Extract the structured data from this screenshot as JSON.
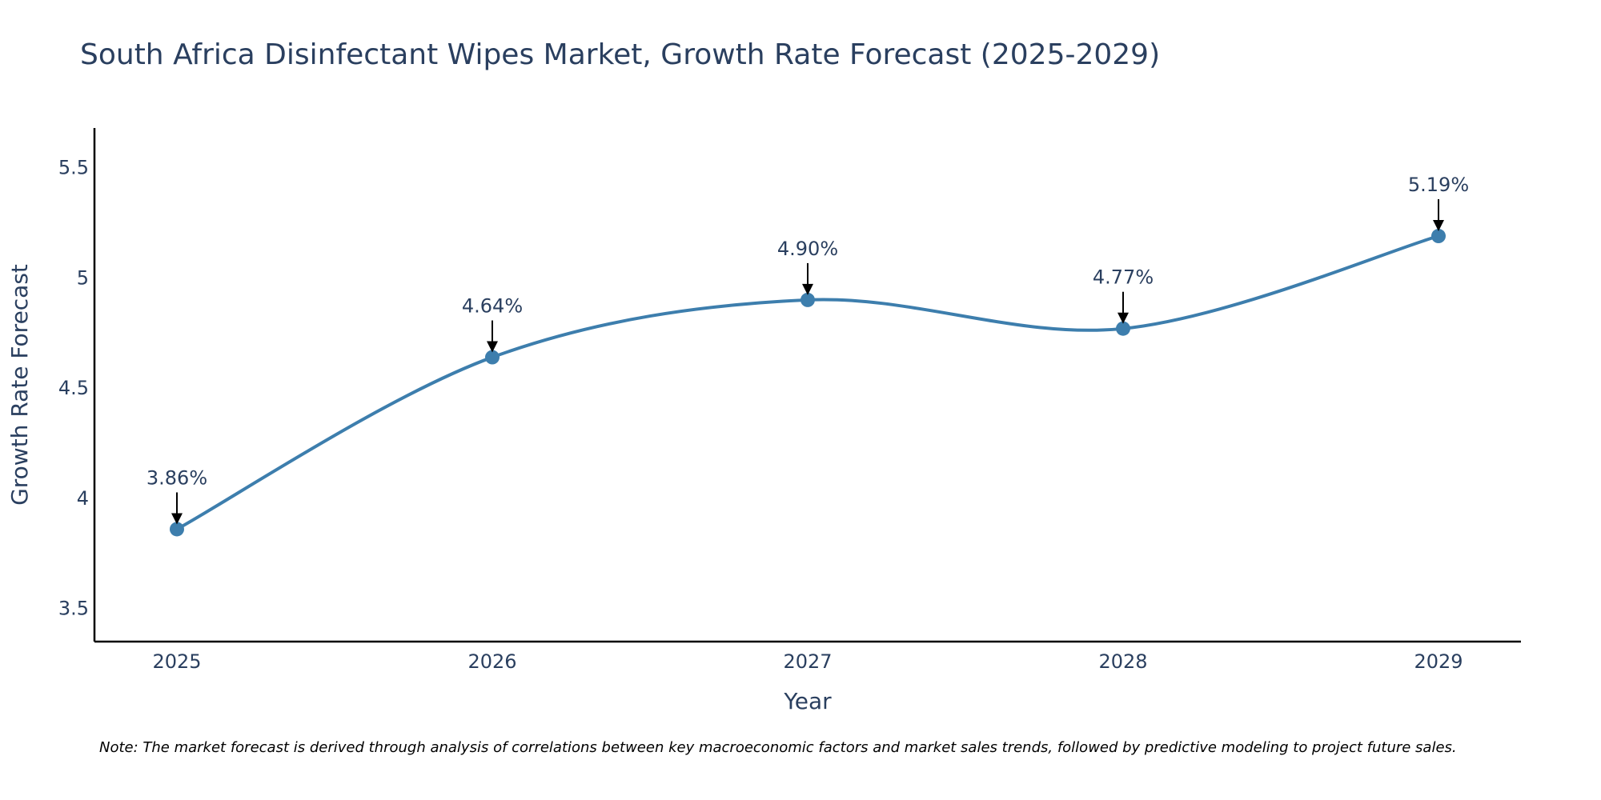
{
  "chart_data": {
    "type": "line",
    "title": "South Africa Disinfectant Wipes Market, Growth Rate Forecast (2025-2029)",
    "xlabel": "Year",
    "ylabel": "Growth Rate Forecast",
    "categories": [
      "2025",
      "2026",
      "2027",
      "2028",
      "2029"
    ],
    "series": [
      {
        "name": "Growth Rate Forecast",
        "values": [
          3.86,
          4.64,
          4.9,
          4.77,
          5.19
        ],
        "labels": [
          "3.86%",
          "4.64%",
          "4.90%",
          "4.77%",
          "5.19%"
        ]
      }
    ],
    "ylim": [
      3.35,
      5.68
    ],
    "yticks": [
      3.5,
      4,
      4.5,
      5,
      5.5
    ],
    "ytick_labels": [
      "3.5",
      "4",
      "4.5",
      "5",
      "5.5"
    ],
    "grid": false,
    "line_shape": "spline",
    "colors": {
      "line": "#3d7ead",
      "marker": "#3d7ead",
      "arrow": "#000000",
      "text": "#2a3f5f",
      "axis": "#000000"
    }
  },
  "note": "Note: The market forecast is derived through analysis of correlations between key macroeconomic factors and market sales trends, followed by predictive modeling to project future sales."
}
